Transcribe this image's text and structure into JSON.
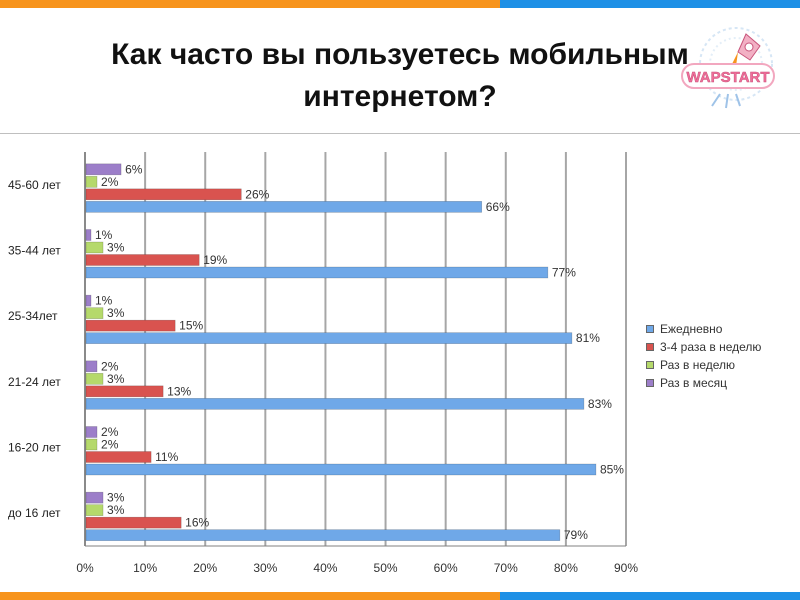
{
  "title": {
    "line1": "Как часто вы пользуетесь мобильным",
    "line2": "интернетом?"
  },
  "logo": {
    "text": "WAPSTART"
  },
  "colors": {
    "orange_bar": "#f7941d",
    "blue_bar": "#1e90e6",
    "series": [
      "#6fa8e8",
      "#d9534f",
      "#b5d96b",
      "#9c7ec9"
    ]
  },
  "chart_data": {
    "type": "bar",
    "orientation": "horizontal",
    "categories": [
      "45-60 лет",
      "35-44 лет",
      "25-34лет",
      "21-24 лет",
      "16-20 лет",
      "до 16 лет"
    ],
    "series": [
      {
        "name": "Ежедневно",
        "values": [
          66,
          77,
          81,
          83,
          85,
          79
        ],
        "labels": [
          "66%",
          "77%",
          "81%",
          "83%",
          "85%",
          "79%"
        ]
      },
      {
        "name": "3-4 раза в неделю",
        "values": [
          26,
          19,
          15,
          13,
          11,
          16
        ],
        "labels": [
          "26%",
          "19%",
          "15%",
          "13%",
          "11%",
          "16%"
        ]
      },
      {
        "name": "Раз в неделю",
        "values": [
          2,
          3,
          3,
          3,
          2,
          3
        ],
        "labels": [
          "2%",
          "3%",
          "3%",
          "3%",
          "2%",
          "3%"
        ]
      },
      {
        "name": "Раз в месяц",
        "values": [
          6,
          1,
          1,
          2,
          2,
          3
        ],
        "labels": [
          "6%",
          "1%",
          "1%",
          "2%",
          "2%",
          "3%"
        ]
      }
    ],
    "xlim": [
      0,
      90
    ],
    "xticks": [
      "0%",
      "10%",
      "20%",
      "30%",
      "40%",
      "50%",
      "60%",
      "70%",
      "80%",
      "90%"
    ],
    "grid": true,
    "legend_position": "right"
  }
}
